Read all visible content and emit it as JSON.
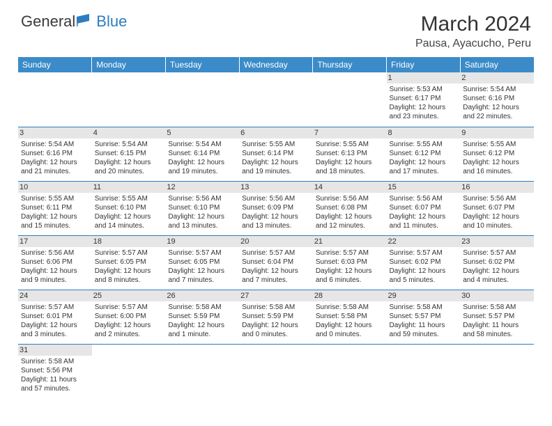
{
  "logo": {
    "general": "General",
    "blue": "Blue"
  },
  "title": "March 2024",
  "location": "Pausa, Ayacucho, Peru",
  "colors": {
    "header_bg": "#3b8bc9",
    "header_text": "#ffffff",
    "rule": "#2e7cc0",
    "daynum_bg": "#e6e6e6",
    "text": "#333333",
    "logo_accent": "#2e7cc0"
  },
  "fonts": {
    "title_size": 30,
    "location_size": 16,
    "th_size": 12,
    "cell_size": 10
  },
  "day_headers": [
    "Sunday",
    "Monday",
    "Tuesday",
    "Wednesday",
    "Thursday",
    "Friday",
    "Saturday"
  ],
  "weeks": [
    [
      {
        "n": "",
        "lines": []
      },
      {
        "n": "",
        "lines": []
      },
      {
        "n": "",
        "lines": []
      },
      {
        "n": "",
        "lines": []
      },
      {
        "n": "",
        "lines": []
      },
      {
        "n": "1",
        "lines": [
          "Sunrise: 5:53 AM",
          "Sunset: 6:17 PM",
          "Daylight: 12 hours",
          "and 23 minutes."
        ]
      },
      {
        "n": "2",
        "lines": [
          "Sunrise: 5:54 AM",
          "Sunset: 6:16 PM",
          "Daylight: 12 hours",
          "and 22 minutes."
        ]
      }
    ],
    [
      {
        "n": "3",
        "lines": [
          "Sunrise: 5:54 AM",
          "Sunset: 6:16 PM",
          "Daylight: 12 hours",
          "and 21 minutes."
        ]
      },
      {
        "n": "4",
        "lines": [
          "Sunrise: 5:54 AM",
          "Sunset: 6:15 PM",
          "Daylight: 12 hours",
          "and 20 minutes."
        ]
      },
      {
        "n": "5",
        "lines": [
          "Sunrise: 5:54 AM",
          "Sunset: 6:14 PM",
          "Daylight: 12 hours",
          "and 19 minutes."
        ]
      },
      {
        "n": "6",
        "lines": [
          "Sunrise: 5:55 AM",
          "Sunset: 6:14 PM",
          "Daylight: 12 hours",
          "and 19 minutes."
        ]
      },
      {
        "n": "7",
        "lines": [
          "Sunrise: 5:55 AM",
          "Sunset: 6:13 PM",
          "Daylight: 12 hours",
          "and 18 minutes."
        ]
      },
      {
        "n": "8",
        "lines": [
          "Sunrise: 5:55 AM",
          "Sunset: 6:12 PM",
          "Daylight: 12 hours",
          "and 17 minutes."
        ]
      },
      {
        "n": "9",
        "lines": [
          "Sunrise: 5:55 AM",
          "Sunset: 6:12 PM",
          "Daylight: 12 hours",
          "and 16 minutes."
        ]
      }
    ],
    [
      {
        "n": "10",
        "lines": [
          "Sunrise: 5:55 AM",
          "Sunset: 6:11 PM",
          "Daylight: 12 hours",
          "and 15 minutes."
        ]
      },
      {
        "n": "11",
        "lines": [
          "Sunrise: 5:55 AM",
          "Sunset: 6:10 PM",
          "Daylight: 12 hours",
          "and 14 minutes."
        ]
      },
      {
        "n": "12",
        "lines": [
          "Sunrise: 5:56 AM",
          "Sunset: 6:10 PM",
          "Daylight: 12 hours",
          "and 13 minutes."
        ]
      },
      {
        "n": "13",
        "lines": [
          "Sunrise: 5:56 AM",
          "Sunset: 6:09 PM",
          "Daylight: 12 hours",
          "and 13 minutes."
        ]
      },
      {
        "n": "14",
        "lines": [
          "Sunrise: 5:56 AM",
          "Sunset: 6:08 PM",
          "Daylight: 12 hours",
          "and 12 minutes."
        ]
      },
      {
        "n": "15",
        "lines": [
          "Sunrise: 5:56 AM",
          "Sunset: 6:07 PM",
          "Daylight: 12 hours",
          "and 11 minutes."
        ]
      },
      {
        "n": "16",
        "lines": [
          "Sunrise: 5:56 AM",
          "Sunset: 6:07 PM",
          "Daylight: 12 hours",
          "and 10 minutes."
        ]
      }
    ],
    [
      {
        "n": "17",
        "lines": [
          "Sunrise: 5:56 AM",
          "Sunset: 6:06 PM",
          "Daylight: 12 hours",
          "and 9 minutes."
        ]
      },
      {
        "n": "18",
        "lines": [
          "Sunrise: 5:57 AM",
          "Sunset: 6:05 PM",
          "Daylight: 12 hours",
          "and 8 minutes."
        ]
      },
      {
        "n": "19",
        "lines": [
          "Sunrise: 5:57 AM",
          "Sunset: 6:05 PM",
          "Daylight: 12 hours",
          "and 7 minutes."
        ]
      },
      {
        "n": "20",
        "lines": [
          "Sunrise: 5:57 AM",
          "Sunset: 6:04 PM",
          "Daylight: 12 hours",
          "and 7 minutes."
        ]
      },
      {
        "n": "21",
        "lines": [
          "Sunrise: 5:57 AM",
          "Sunset: 6:03 PM",
          "Daylight: 12 hours",
          "and 6 minutes."
        ]
      },
      {
        "n": "22",
        "lines": [
          "Sunrise: 5:57 AM",
          "Sunset: 6:02 PM",
          "Daylight: 12 hours",
          "and 5 minutes."
        ]
      },
      {
        "n": "23",
        "lines": [
          "Sunrise: 5:57 AM",
          "Sunset: 6:02 PM",
          "Daylight: 12 hours",
          "and 4 minutes."
        ]
      }
    ],
    [
      {
        "n": "24",
        "lines": [
          "Sunrise: 5:57 AM",
          "Sunset: 6:01 PM",
          "Daylight: 12 hours",
          "and 3 minutes."
        ]
      },
      {
        "n": "25",
        "lines": [
          "Sunrise: 5:57 AM",
          "Sunset: 6:00 PM",
          "Daylight: 12 hours",
          "and 2 minutes."
        ]
      },
      {
        "n": "26",
        "lines": [
          "Sunrise: 5:58 AM",
          "Sunset: 5:59 PM",
          "Daylight: 12 hours",
          "and 1 minute."
        ]
      },
      {
        "n": "27",
        "lines": [
          "Sunrise: 5:58 AM",
          "Sunset: 5:59 PM",
          "Daylight: 12 hours",
          "and 0 minutes."
        ]
      },
      {
        "n": "28",
        "lines": [
          "Sunrise: 5:58 AM",
          "Sunset: 5:58 PM",
          "Daylight: 12 hours",
          "and 0 minutes."
        ]
      },
      {
        "n": "29",
        "lines": [
          "Sunrise: 5:58 AM",
          "Sunset: 5:57 PM",
          "Daylight: 11 hours",
          "and 59 minutes."
        ]
      },
      {
        "n": "30",
        "lines": [
          "Sunrise: 5:58 AM",
          "Sunset: 5:57 PM",
          "Daylight: 11 hours",
          "and 58 minutes."
        ]
      }
    ],
    [
      {
        "n": "31",
        "lines": [
          "Sunrise: 5:58 AM",
          "Sunset: 5:56 PM",
          "Daylight: 11 hours",
          "and 57 minutes."
        ]
      },
      {
        "n": "",
        "lines": []
      },
      {
        "n": "",
        "lines": []
      },
      {
        "n": "",
        "lines": []
      },
      {
        "n": "",
        "lines": []
      },
      {
        "n": "",
        "lines": []
      },
      {
        "n": "",
        "lines": []
      }
    ]
  ]
}
